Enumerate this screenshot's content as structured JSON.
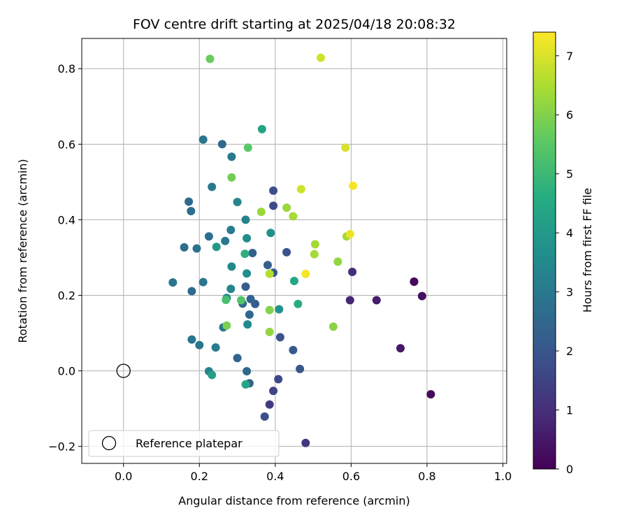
{
  "chart_data": {
    "type": "scatter",
    "title": "FOV centre drift starting at 2025/04/18 20:08:32",
    "xlabel": "Angular distance from reference (arcmin)",
    "ylabel": "Rotation from reference (arcmin)",
    "xlim": [
      -0.11,
      1.01
    ],
    "ylim": [
      -0.245,
      0.88
    ],
    "xticks": [
      0.0,
      0.2,
      0.4,
      0.6,
      0.8,
      1.0
    ],
    "xtick_labels": [
      "0.0",
      "0.2",
      "0.4",
      "0.6",
      "0.8",
      "1.0"
    ],
    "yticks": [
      -0.2,
      0.0,
      0.2,
      0.4,
      0.6,
      0.8
    ],
    "ytick_labels": [
      "−0.2",
      "0.0",
      "0.2",
      "0.4",
      "0.6",
      "0.8"
    ],
    "grid": true,
    "colormap": "viridis",
    "colorbar": {
      "label": "Hours from first FF file",
      "range": [
        0,
        7.4
      ],
      "ticks": [
        0,
        1,
        2,
        3,
        4,
        5,
        6,
        7
      ],
      "tick_labels": [
        "0",
        "1",
        "2",
        "3",
        "4",
        "5",
        "6",
        "7"
      ]
    },
    "reference_point": {
      "x": 0.0,
      "y": 0.0,
      "legend_label": "Reference platepar"
    },
    "legend_position": "lower-left",
    "points": [
      {
        "x": 0.766,
        "y": 0.236,
        "h": 0.1
      },
      {
        "x": 0.766,
        "y": 0.236,
        "h": 0.2
      },
      {
        "x": 0.81,
        "y": -0.062,
        "h": 0.2
      },
      {
        "x": 0.787,
        "y": 0.198,
        "h": 0.3
      },
      {
        "x": 0.73,
        "y": 0.06,
        "h": 0.5
      },
      {
        "x": 0.667,
        "y": 0.187,
        "h": 0.6
      },
      {
        "x": 0.597,
        "y": 0.187,
        "h": 0.8
      },
      {
        "x": 0.603,
        "y": 0.262,
        "h": 1.0
      },
      {
        "x": 0.48,
        "y": -0.191,
        "h": 1.2
      },
      {
        "x": 0.385,
        "y": -0.089,
        "h": 1.3
      },
      {
        "x": 0.395,
        "y": -0.053,
        "h": 1.5
      },
      {
        "x": 0.408,
        "y": -0.022,
        "h": 1.6
      },
      {
        "x": 0.372,
        "y": -0.121,
        "h": 1.8
      },
      {
        "x": 0.395,
        "y": 0.437,
        "h": 1.7
      },
      {
        "x": 0.395,
        "y": 0.477,
        "h": 1.8
      },
      {
        "x": 0.43,
        "y": 0.314,
        "h": 1.9
      },
      {
        "x": 0.413,
        "y": 0.089,
        "h": 1.9
      },
      {
        "x": 0.465,
        "y": 0.005,
        "h": 2.0
      },
      {
        "x": 0.447,
        "y": 0.055,
        "h": 2.1
      },
      {
        "x": 0.395,
        "y": 0.26,
        "h": 2.1
      },
      {
        "x": 0.38,
        "y": 0.28,
        "h": 2.3
      },
      {
        "x": 0.34,
        "y": 0.312,
        "h": 2.3
      },
      {
        "x": 0.347,
        "y": 0.177,
        "h": 2.2
      },
      {
        "x": 0.335,
        "y": 0.19,
        "h": 2.4
      },
      {
        "x": 0.332,
        "y": 0.149,
        "h": 2.5
      },
      {
        "x": 0.322,
        "y": 0.223,
        "h": 2.2
      },
      {
        "x": 0.314,
        "y": 0.178,
        "h": 2.6
      },
      {
        "x": 0.332,
        "y": -0.033,
        "h": 2.3
      },
      {
        "x": 0.325,
        "y": -0.001,
        "h": 2.5
      },
      {
        "x": 0.3,
        "y": 0.034,
        "h": 2.4
      },
      {
        "x": 0.26,
        "y": 0.6,
        "h": 2.5
      },
      {
        "x": 0.172,
        "y": 0.448,
        "h": 2.6
      },
      {
        "x": 0.178,
        "y": 0.423,
        "h": 2.7
      },
      {
        "x": 0.225,
        "y": 0.356,
        "h": 2.7
      },
      {
        "x": 0.18,
        "y": 0.211,
        "h": 2.6
      },
      {
        "x": 0.16,
        "y": 0.327,
        "h": 2.7
      },
      {
        "x": 0.193,
        "y": 0.324,
        "h": 2.8
      },
      {
        "x": 0.13,
        "y": 0.234,
        "h": 2.9
      },
      {
        "x": 0.21,
        "y": 0.612,
        "h": 2.9
      },
      {
        "x": 0.233,
        "y": 0.487,
        "h": 3.0
      },
      {
        "x": 0.285,
        "y": 0.567,
        "h": 3.0
      },
      {
        "x": 0.268,
        "y": 0.344,
        "h": 3.0
      },
      {
        "x": 0.283,
        "y": 0.373,
        "h": 3.1
      },
      {
        "x": 0.21,
        "y": 0.235,
        "h": 2.9
      },
      {
        "x": 0.18,
        "y": 0.083,
        "h": 2.9
      },
      {
        "x": 0.2,
        "y": 0.068,
        "h": 2.9
      },
      {
        "x": 0.243,
        "y": 0.062,
        "h": 3.1
      },
      {
        "x": 0.263,
        "y": 0.115,
        "h": 3.0
      },
      {
        "x": 0.225,
        "y": -0.001,
        "h": 3.3
      },
      {
        "x": 0.3,
        "y": 0.447,
        "h": 3.4
      },
      {
        "x": 0.322,
        "y": 0.4,
        "h": 3.3
      },
      {
        "x": 0.285,
        "y": 0.276,
        "h": 3.5
      },
      {
        "x": 0.283,
        "y": 0.217,
        "h": 3.4
      },
      {
        "x": 0.272,
        "y": 0.193,
        "h": 3.6
      },
      {
        "x": 0.325,
        "y": 0.351,
        "h": 3.6
      },
      {
        "x": 0.325,
        "y": 0.258,
        "h": 3.6
      },
      {
        "x": 0.327,
        "y": 0.123,
        "h": 3.5
      },
      {
        "x": 0.388,
        "y": 0.365,
        "h": 3.7
      },
      {
        "x": 0.41,
        "y": 0.163,
        "h": 3.8
      },
      {
        "x": 0.245,
        "y": 0.328,
        "h": 4.0
      },
      {
        "x": 0.233,
        "y": -0.011,
        "h": 4.2
      },
      {
        "x": 0.365,
        "y": 0.64,
        "h": 4.3
      },
      {
        "x": 0.322,
        "y": -0.036,
        "h": 4.4
      },
      {
        "x": 0.45,
        "y": 0.238,
        "h": 4.4
      },
      {
        "x": 0.46,
        "y": 0.177,
        "h": 4.6
      },
      {
        "x": 0.32,
        "y": 0.31,
        "h": 4.7
      },
      {
        "x": 0.27,
        "y": 0.188,
        "h": 5.2
      },
      {
        "x": 0.31,
        "y": 0.187,
        "h": 5.4
      },
      {
        "x": 0.328,
        "y": 0.591,
        "h": 5.5
      },
      {
        "x": 0.228,
        "y": 0.826,
        "h": 5.7
      },
      {
        "x": 0.285,
        "y": 0.512,
        "h": 5.8
      },
      {
        "x": 0.272,
        "y": 0.12,
        "h": 5.9
      },
      {
        "x": 0.385,
        "y": 0.161,
        "h": 6.0
      },
      {
        "x": 0.385,
        "y": 0.103,
        "h": 6.2
      },
      {
        "x": 0.363,
        "y": 0.421,
        "h": 6.3
      },
      {
        "x": 0.43,
        "y": 0.432,
        "h": 6.3
      },
      {
        "x": 0.447,
        "y": 0.409,
        "h": 6.4
      },
      {
        "x": 0.385,
        "y": 0.257,
        "h": 6.6
      },
      {
        "x": 0.505,
        "y": 0.335,
        "h": 6.4
      },
      {
        "x": 0.503,
        "y": 0.309,
        "h": 6.4
      },
      {
        "x": 0.565,
        "y": 0.289,
        "h": 6.2
      },
      {
        "x": 0.553,
        "y": 0.117,
        "h": 6.1
      },
      {
        "x": 0.588,
        "y": 0.356,
        "h": 6.4
      },
      {
        "x": 0.468,
        "y": 0.481,
        "h": 6.9
      },
      {
        "x": 0.52,
        "y": 0.829,
        "h": 6.9
      },
      {
        "x": 0.585,
        "y": 0.591,
        "h": 7.0
      },
      {
        "x": 0.597,
        "y": 0.362,
        "h": 7.2
      },
      {
        "x": 0.605,
        "y": 0.49,
        "h": 7.3
      },
      {
        "x": 0.48,
        "y": 0.257,
        "h": 7.3
      }
    ]
  }
}
